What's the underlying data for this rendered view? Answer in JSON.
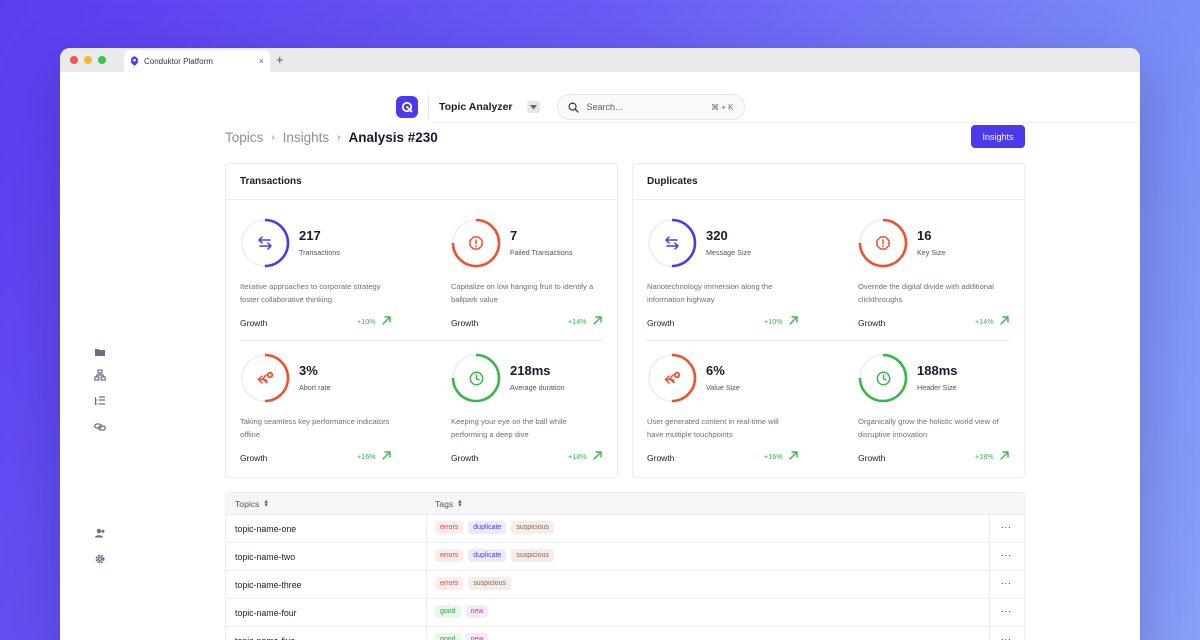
{
  "browser": {
    "tab_title": "Conduktor Platform",
    "close_glyph": "×",
    "new_tab_glyph": "+"
  },
  "app": {
    "name": "Topic Analyzer",
    "search": {
      "placeholder": "Search...",
      "shortcut": "⌘ + K"
    }
  },
  "breadcrumb": [
    "Topics",
    "Insights",
    "Analysis #230"
  ],
  "breadcrumb_separator": "›",
  "actions": {
    "insights_button": "Insights"
  },
  "sidebar_icons": [
    "folder-icon",
    "topology-icon",
    "list-tree-icon",
    "link-icon",
    "users-icon",
    "settings-icon"
  ],
  "colors": {
    "accent": "#4a3aec",
    "danger": "#f0502f",
    "success": "#3ab54a",
    "ring_track": "#ededf2"
  },
  "cards": [
    {
      "title": "Transactions",
      "metrics": [
        {
          "value": "217",
          "label": "Transactions",
          "description": "Iterative approaches to corporate strategy foster collaborative thinking",
          "growth_label": "Growth",
          "growth": "+10%",
          "icon": "transfer-icon",
          "tone": "accent",
          "progress": 0.5
        },
        {
          "value": "7",
          "label": "Failed Transactions",
          "description": "Capitalize on low hanging fruit to identify a ballpark value",
          "growth_label": "Growth",
          "growth": "+14%",
          "icon": "alert-octagon-icon",
          "tone": "danger",
          "progress": 0.75
        },
        {
          "value": "3%",
          "label": "Abort rate",
          "description": "Taking seamless key performance indicators offline",
          "growth_label": "Growth",
          "growth": "+16%",
          "icon": "abort-reply-icon",
          "tone": "danger",
          "progress": 0.5
        },
        {
          "value": "218ms",
          "label": "Average duration",
          "description": "Keeping your eye on the ball while performing a deep dive",
          "growth_label": "Growth",
          "growth": "+18%",
          "icon": "clock-icon",
          "tone": "success",
          "progress": 0.75
        }
      ]
    },
    {
      "title": "Duplicates",
      "metrics": [
        {
          "value": "320",
          "label": "Message Size",
          "description": "Nanotechnology immersion along the information highway",
          "growth_label": "Growth",
          "growth": "+10%",
          "icon": "transfer-icon",
          "tone": "accent",
          "progress": 0.5
        },
        {
          "value": "16",
          "label": "Key Size",
          "description": "Override the digital divide with additional clickthroughs",
          "growth_label": "Growth",
          "growth": "+14%",
          "icon": "alert-octagon-icon",
          "tone": "danger",
          "progress": 0.75
        },
        {
          "value": "6%",
          "label": "Value Size",
          "description": "User generated content in real-time will have multiple touchpoints",
          "growth_label": "Growth",
          "growth": "+16%",
          "icon": "abort-reply-icon",
          "tone": "danger",
          "progress": 0.5
        },
        {
          "value": "188ms",
          "label": "Header Size",
          "description": "Organically grow the holistic world view of disruptive innovation",
          "growth_label": "Growth",
          "growth": "+18%",
          "icon": "clock-icon",
          "tone": "success",
          "progress": 0.75
        }
      ]
    }
  ],
  "table": {
    "columns": [
      "Topics",
      "Tags"
    ],
    "more_glyph": "···",
    "rows": [
      {
        "name": "topic-name-one",
        "tags": [
          "errors",
          "duplicate",
          "suspicious"
        ]
      },
      {
        "name": "topic-name-two",
        "tags": [
          "errors",
          "duplicate",
          "suspicious"
        ]
      },
      {
        "name": "topic-name-three",
        "tags": [
          "errors",
          "suspicious"
        ]
      },
      {
        "name": "topic-name-four",
        "tags": [
          "good",
          "new"
        ]
      },
      {
        "name": "topic-name-five",
        "tags": [
          "good",
          "new"
        ]
      }
    ]
  }
}
